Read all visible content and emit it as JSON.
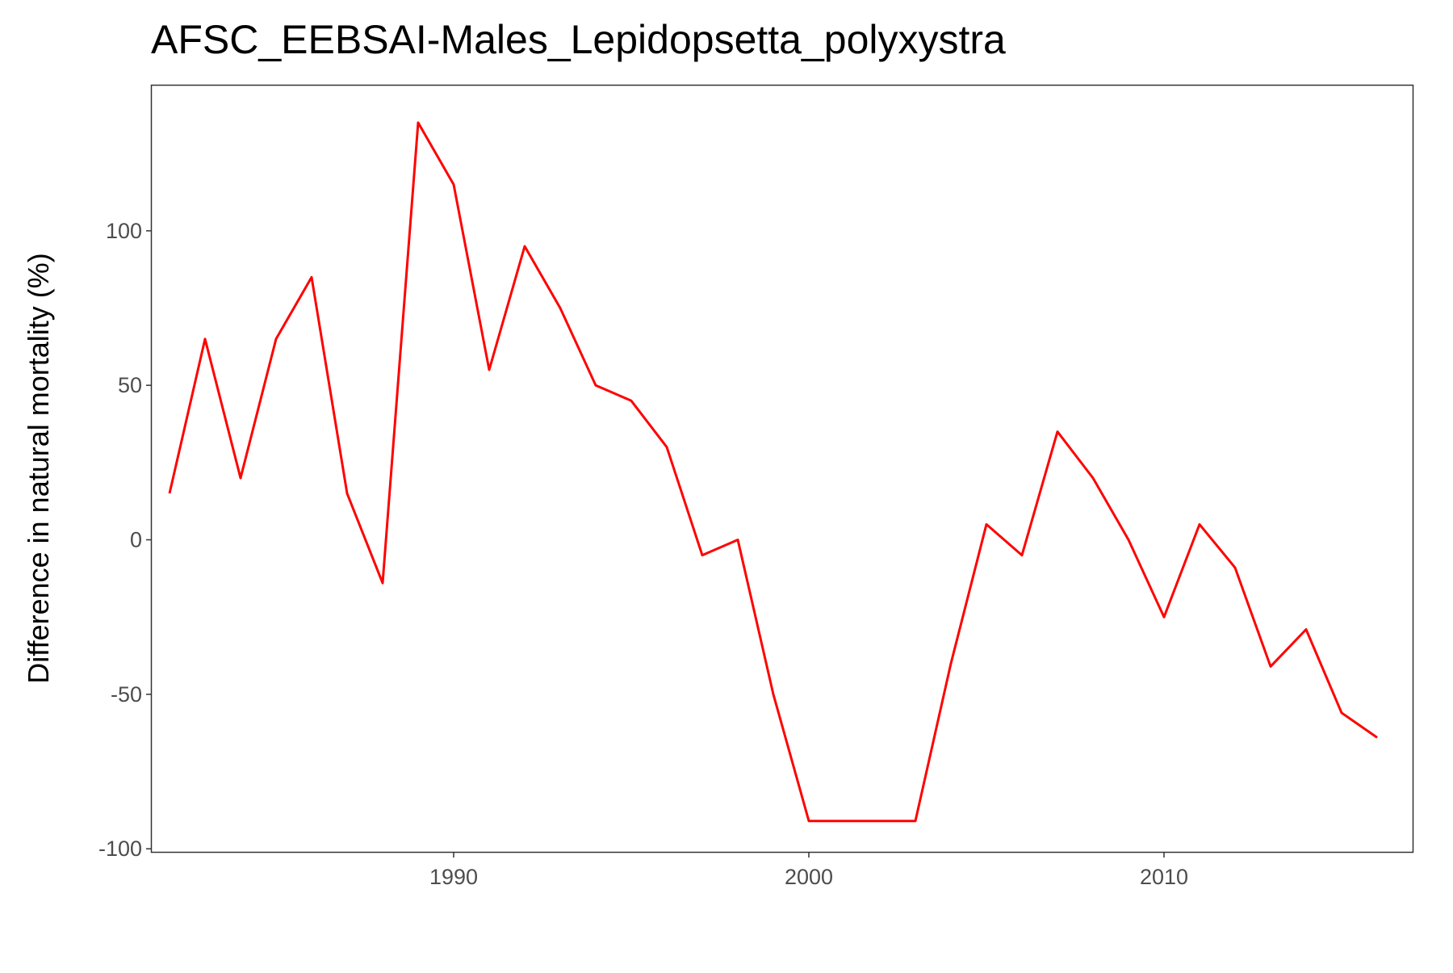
{
  "chart_data": {
    "type": "line",
    "title": "AFSC_EEBSAI-Males_Lepidopsetta_polyxystra",
    "xlabel": "",
    "ylabel": "Difference in natural mortality (%)",
    "xlim": [
      1981.5,
      2017.0
    ],
    "ylim": [
      -101,
      147
    ],
    "x_ticks": [
      1990,
      2000,
      2010
    ],
    "y_ticks": [
      -100,
      -50,
      0,
      50,
      100
    ],
    "grid": false,
    "legend": "none",
    "series": [
      {
        "color": "#FF0000",
        "x": [
          1982,
          1983,
          1984,
          1985,
          1986,
          1987,
          1988,
          1989,
          1990,
          1991,
          1992,
          1993,
          1994,
          1995,
          1996,
          1997,
          1998,
          1999,
          2000,
          2001,
          2002,
          2003,
          2004,
          2005,
          2006,
          2007,
          2008,
          2009,
          2010,
          2011,
          2012,
          2013,
          2014,
          2015,
          2016
        ],
        "y": [
          15,
          65,
          20,
          65,
          85,
          15,
          -14,
          135,
          115,
          55,
          95,
          75,
          50,
          45,
          30,
          -5,
          0,
          -50,
          -91,
          -91,
          -91,
          -91,
          -40,
          5,
          -5,
          35,
          20,
          0,
          -25,
          5,
          -9,
          -41,
          -29,
          -56,
          -64
        ]
      }
    ]
  }
}
